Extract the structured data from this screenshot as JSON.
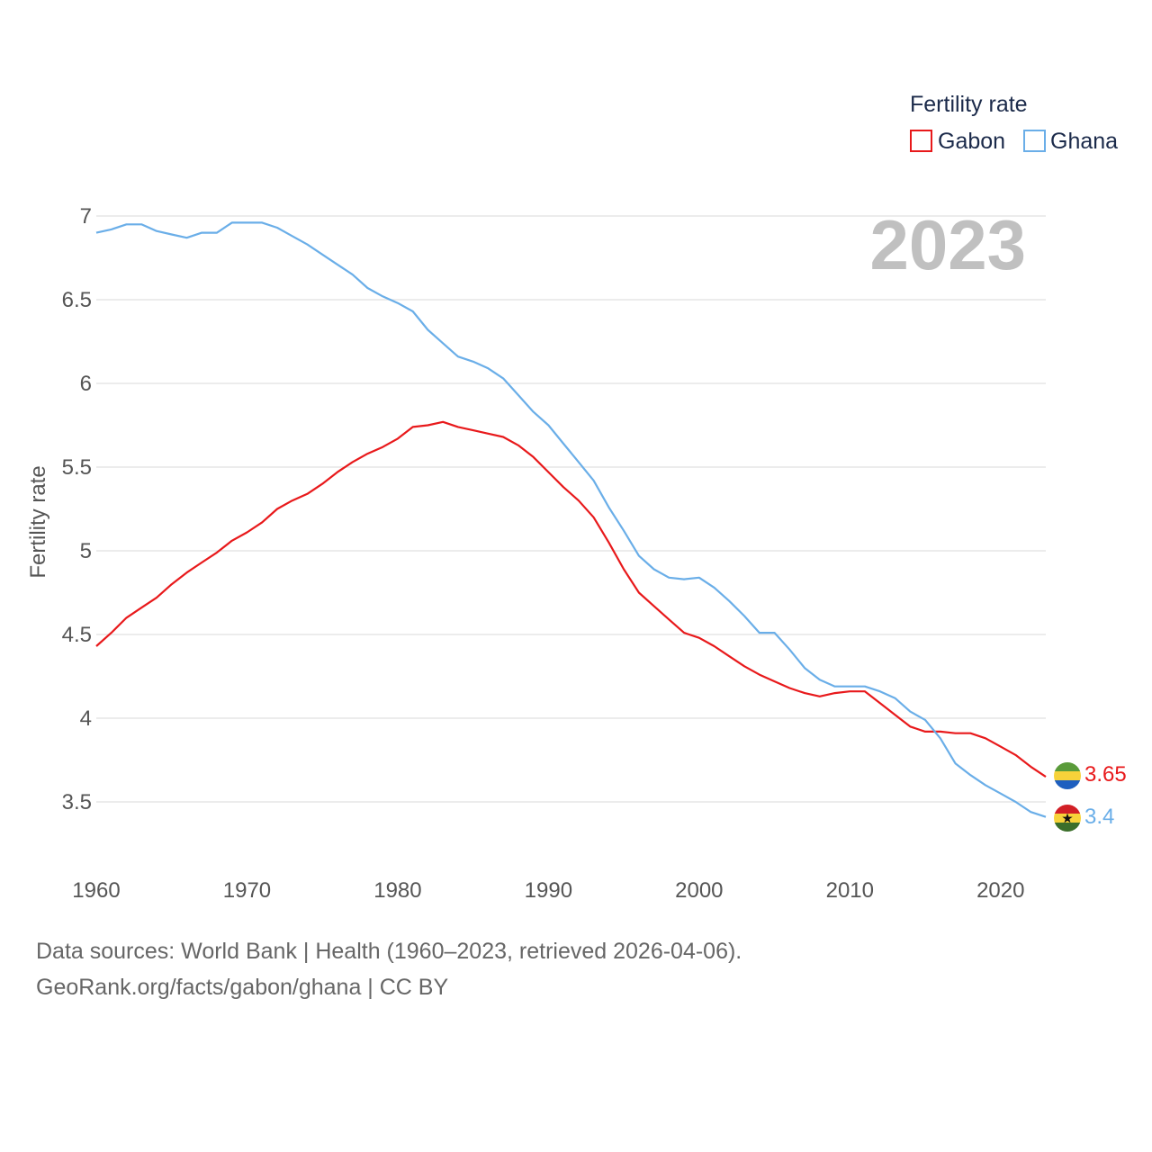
{
  "chart_data": {
    "type": "line",
    "title": "",
    "year_label": "2023",
    "ylabel": "Fertility rate",
    "xlabel": "",
    "xlim": [
      1960,
      2023
    ],
    "ylim": [
      3.2,
      7.0
    ],
    "x_ticks": [
      1960,
      1970,
      1980,
      1990,
      2000,
      2010,
      2020
    ],
    "y_ticks": [
      3.5,
      4,
      4.5,
      5,
      5.5,
      6,
      6.5,
      7
    ],
    "y_tick_labels": [
      "3.5",
      "4",
      "4.5",
      "5",
      "5.5",
      "6",
      "6.5",
      "7"
    ],
    "legend": {
      "title": "Fertility rate",
      "position": "top-right"
    },
    "x": [
      1960,
      1961,
      1962,
      1963,
      1964,
      1965,
      1966,
      1967,
      1968,
      1969,
      1970,
      1971,
      1972,
      1973,
      1974,
      1975,
      1976,
      1977,
      1978,
      1979,
      1980,
      1981,
      1982,
      1983,
      1984,
      1985,
      1986,
      1987,
      1988,
      1989,
      1990,
      1991,
      1992,
      1993,
      1994,
      1995,
      1996,
      1997,
      1998,
      1999,
      2000,
      2001,
      2002,
      2003,
      2004,
      2005,
      2006,
      2007,
      2008,
      2009,
      2010,
      2011,
      2012,
      2013,
      2014,
      2015,
      2016,
      2017,
      2018,
      2019,
      2020,
      2021,
      2022,
      2023
    ],
    "series": [
      {
        "name": "Gabon",
        "color": "#e8191b",
        "end_label": "3.65",
        "values": [
          4.43,
          4.51,
          4.6,
          4.66,
          4.72,
          4.8,
          4.87,
          4.93,
          4.99,
          5.06,
          5.11,
          5.17,
          5.25,
          5.3,
          5.34,
          5.4,
          5.47,
          5.53,
          5.58,
          5.62,
          5.67,
          5.74,
          5.75,
          5.77,
          5.74,
          5.72,
          5.7,
          5.68,
          5.63,
          5.56,
          5.47,
          5.38,
          5.3,
          5.2,
          5.05,
          4.89,
          4.75,
          4.67,
          4.59,
          4.51,
          4.48,
          4.43,
          4.37,
          4.31,
          4.26,
          4.22,
          4.18,
          4.15,
          4.13,
          4.15,
          4.16,
          4.16,
          4.09,
          4.02,
          3.95,
          3.92,
          3.92,
          3.91,
          3.91,
          3.88,
          3.83,
          3.78,
          3.71,
          3.65
        ]
      },
      {
        "name": "Ghana",
        "color": "#6aaee8",
        "end_label": "3.4",
        "values": [
          6.9,
          6.92,
          6.95,
          6.95,
          6.91,
          6.89,
          6.87,
          6.9,
          6.9,
          6.96,
          6.96,
          6.96,
          6.93,
          6.88,
          6.83,
          6.77,
          6.71,
          6.65,
          6.57,
          6.52,
          6.48,
          6.43,
          6.32,
          6.24,
          6.16,
          6.13,
          6.09,
          6.03,
          5.93,
          5.83,
          5.75,
          5.64,
          5.53,
          5.42,
          5.26,
          5.12,
          4.97,
          4.89,
          4.84,
          4.83,
          4.84,
          4.78,
          4.7,
          4.61,
          4.51,
          4.51,
          4.41,
          4.3,
          4.23,
          4.19,
          4.19,
          4.19,
          4.16,
          4.12,
          4.04,
          3.99,
          3.88,
          3.73,
          3.66,
          3.6,
          3.55,
          3.5,
          3.44,
          3.41
        ]
      }
    ]
  },
  "source": {
    "line1": "Data sources: World Bank | Health (1960–2023, retrieved 2026-04-06).",
    "line2": "GeoRank.org/facts/gabon/ghana | CC BY"
  }
}
